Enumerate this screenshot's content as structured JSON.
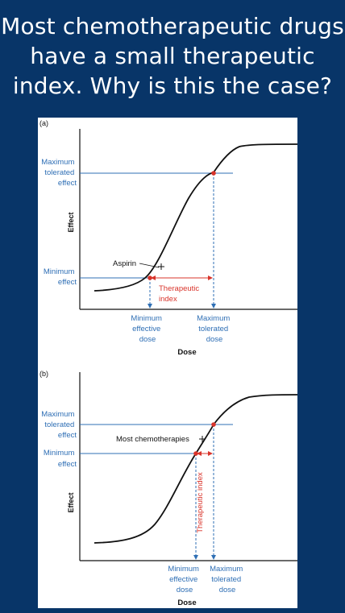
{
  "slide": {
    "title": "Most chemotherapeutic drugs have a small therapeutic index. Why is this the case?"
  },
  "colors": {
    "background": "#083568",
    "blue": "#2f6fb5",
    "red": "#d9342b",
    "curve": "#111111"
  },
  "panel_a": {
    "tag": "(a)",
    "y_axis_label": "Effect",
    "x_axis_label": "Dose",
    "y_label_max": [
      "Maximum",
      "tolerated",
      "effect"
    ],
    "y_label_min": [
      "Minimum",
      "effect"
    ],
    "marker_label": "Aspirin",
    "index_label": [
      "Therapeutic",
      "index"
    ],
    "x_label_min": [
      "Minimum",
      "effective",
      "dose"
    ],
    "x_label_max": [
      "Maximum",
      "tolerated",
      "dose"
    ]
  },
  "panel_b": {
    "tag": "(b)",
    "y_axis_label": "Effect",
    "x_axis_label": "Dose",
    "y_label_max": [
      "Maximum",
      "tolerated",
      "effect"
    ],
    "y_label_min": [
      "Minimum",
      "effect"
    ],
    "marker_label": "Most chemotherapies",
    "index_label": "Therapeutic index",
    "x_label_min": [
      "Minimum",
      "effective",
      "dose"
    ],
    "x_label_max": [
      "Maximum",
      "tolerated",
      "dose"
    ]
  }
}
